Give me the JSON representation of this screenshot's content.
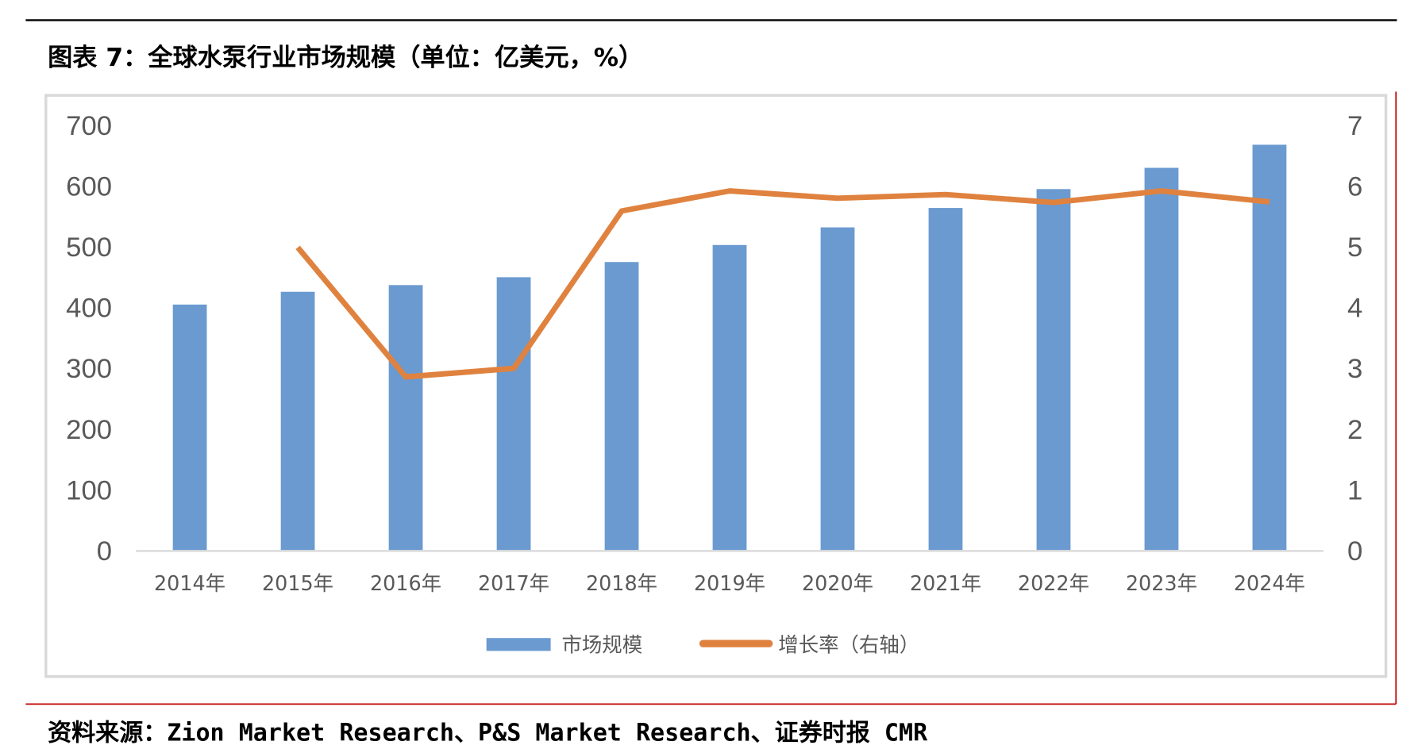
{
  "title": "图表 7：全球水泵行业市场规模（单位：亿美元，%）",
  "source": "资料来源：Zion Market Research、P&S Market Research、证券时报 CMR",
  "chart_data": {
    "type": "bar+line",
    "categories": [
      "2014年",
      "2015年",
      "2016年",
      "2017年",
      "2018年",
      "2019年",
      "2020年",
      "2021年",
      "2022年",
      "2023年",
      "2024年"
    ],
    "series": [
      {
        "name": "市场规模",
        "type": "bar",
        "axis": "left",
        "color": "#6A9AD0",
        "values": [
          404,
          425,
          436,
          449,
          474,
          502,
          531,
          563,
          594,
          629,
          667
        ]
      },
      {
        "name": "增长率（右轴）",
        "type": "line",
        "axis": "right",
        "color": "#E0823F",
        "values": [
          null,
          4.98,
          2.85,
          2.99,
          5.58,
          5.91,
          5.79,
          5.85,
          5.72,
          5.91,
          5.73
        ]
      }
    ],
    "y_left": {
      "ylim": [
        0,
        700
      ],
      "ticks": [
        "0",
        "100",
        "200",
        "300",
        "400",
        "500",
        "600",
        "700"
      ]
    },
    "y_right": {
      "ylim": [
        0,
        7
      ],
      "ticks": [
        "0",
        "1",
        "2",
        "3",
        "4",
        "5",
        "6",
        "7"
      ]
    },
    "grid": false,
    "legend": "bottom"
  }
}
